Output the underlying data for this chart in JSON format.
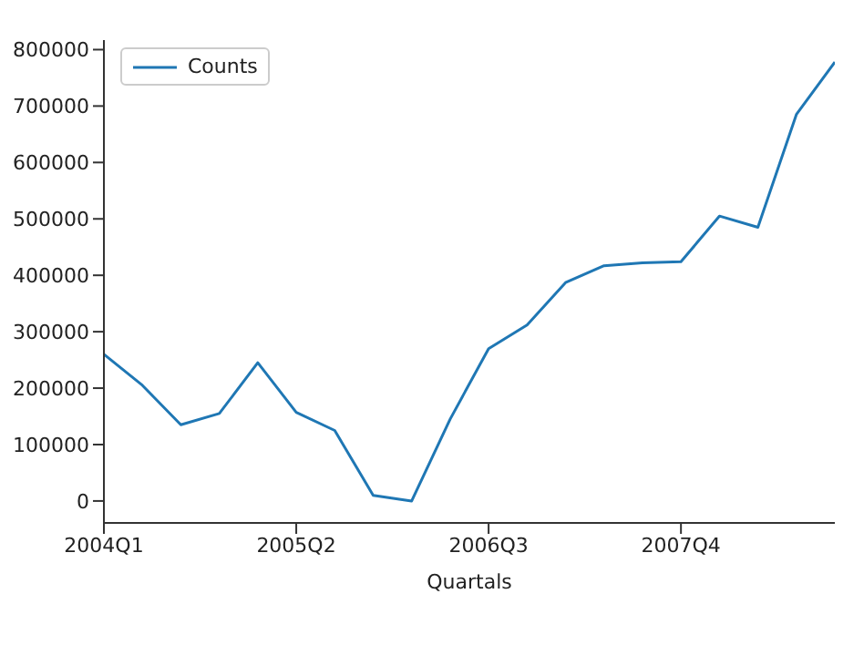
{
  "chart_data": {
    "type": "line",
    "xlabel": "Quartals",
    "categories": [
      "2004Q1",
      null,
      null,
      null,
      null,
      "2005Q2",
      null,
      null,
      null,
      null,
      "2006Q3",
      null,
      null,
      null,
      null,
      "2007Q4",
      null,
      null,
      null,
      null
    ],
    "series": [
      {
        "name": "Counts",
        "color": "#1f77b4",
        "values": [
          260000,
          205000,
          135000,
          155000,
          245000,
          157000,
          125000,
          10000,
          0,
          145000,
          270000,
          312000,
          387000,
          417000,
          422000,
          424000,
          505000,
          485000,
          685000,
          778000
        ]
      }
    ],
    "ylim": [
      -38900,
      816900
    ],
    "yticks": [
      0,
      100000,
      200000,
      300000,
      400000,
      500000,
      600000,
      700000,
      800000
    ],
    "grid": false,
    "legend": "top left",
    "marker": "none",
    "line_style": "solid"
  }
}
